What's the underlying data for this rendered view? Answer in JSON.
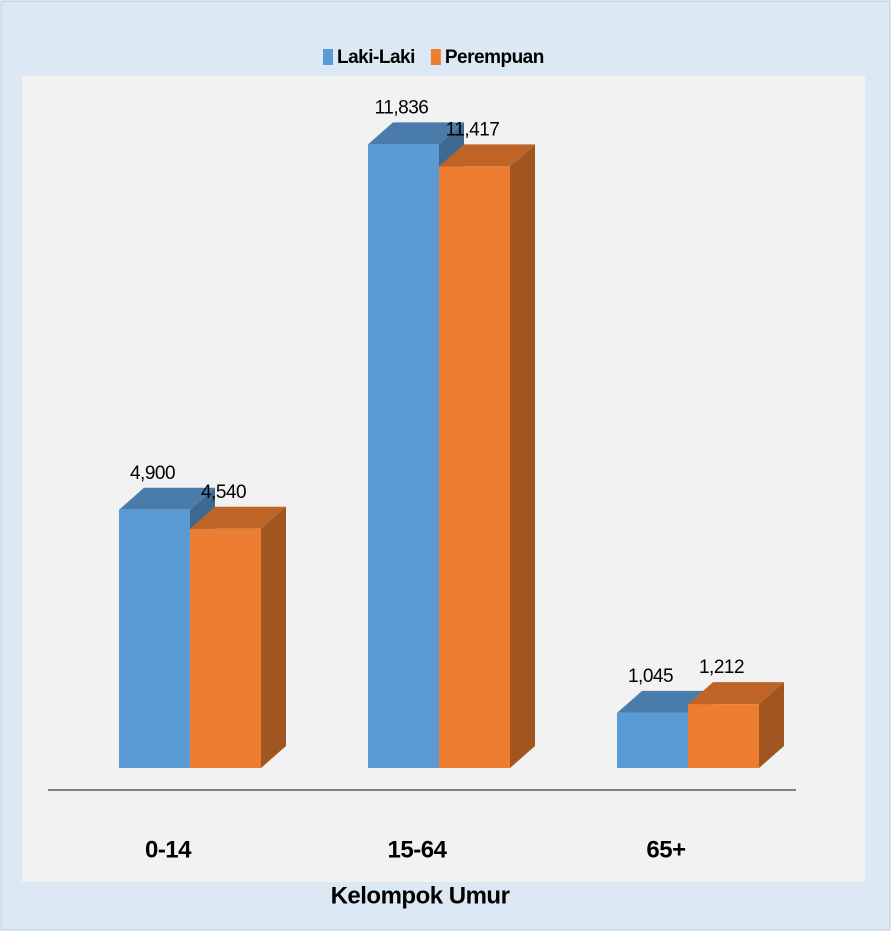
{
  "chart_data": {
    "type": "bar3d",
    "categories": [
      "0-14",
      "15-64",
      "65+"
    ],
    "x_label": "Kelompok Umur",
    "series": [
      {
        "name": "Laki-Laki",
        "color": "#5b9bd5",
        "values": [
          4900,
          11836,
          1045
        ],
        "value_labels": [
          "4,900",
          "11,836",
          "1,045"
        ]
      },
      {
        "name": "Perempuan",
        "color": "#ed7d31",
        "values": [
          4540,
          11417,
          1212
        ],
        "value_labels": [
          "4,540",
          "11,417",
          "1,212"
        ]
      }
    ],
    "ylim": [
      0,
      13000
    ],
    "legend": "top"
  }
}
